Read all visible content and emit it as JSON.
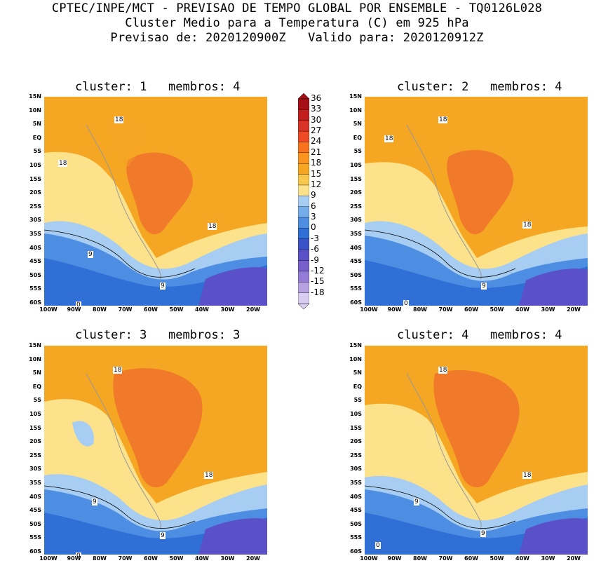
{
  "header": {
    "line1": "CPTEC/INPE/MCT - PREVISAO DE TEMPO GLOBAL POR ENSEMBLE - TQ0126L028",
    "line2": "Cluster Medio para a Temperatura (C) em 925 hPa",
    "line3": "Previsao de: 2020120900Z   Valido para: 2020120912Z"
  },
  "panels": [
    {
      "title": "cluster: 1   membros: 4",
      "labels": [
        "18",
        "18",
        "18",
        "9",
        "9",
        "0"
      ]
    },
    {
      "title": "cluster: 2   membros: 4",
      "labels": [
        "18",
        "18",
        "18",
        "9",
        "0"
      ]
    },
    {
      "title": "cluster: 3   membros: 3",
      "labels": [
        "18",
        "18",
        "9",
        "9",
        "0"
      ]
    },
    {
      "title": "cluster: 4   membros: 4",
      "labels": [
        "18",
        "18",
        "9",
        "9",
        "0"
      ]
    }
  ],
  "axes": {
    "lat_ticks": [
      "15N",
      "10N",
      "5N",
      "EQ",
      "5S",
      "10S",
      "15S",
      "20S",
      "25S",
      "30S",
      "35S",
      "40S",
      "45S",
      "50S",
      "55S",
      "60S"
    ],
    "lon_ticks": [
      "100W",
      "90W",
      "80W",
      "70W",
      "60W",
      "50W",
      "40W",
      "30W",
      "20W"
    ]
  },
  "colorbar": {
    "labels": [
      "36",
      "33",
      "30",
      "27",
      "24",
      "21",
      "18",
      "15",
      "12",
      "9",
      "6",
      "3",
      "0",
      "-3",
      "-6",
      "-9",
      "-12",
      "-15",
      "-18"
    ],
    "colors": [
      "#a50f15",
      "#c21e1e",
      "#d93226",
      "#ee4a25",
      "#f8731c",
      "#fb9520",
      "#f5a623",
      "#f8c84e",
      "#fce28a",
      "#a8cdf2",
      "#73aeea",
      "#4e8ee2",
      "#2f6fd6",
      "#3a52c9",
      "#5a50c8",
      "#7760cc",
      "#947bd6",
      "#b6a2e2",
      "#d8cdf0"
    ]
  },
  "colors": {
    "ocean_warm": "#f5a623",
    "land_hot": "#f07a2a",
    "cool": "#a8cdf2",
    "cold": "#2f6fd6",
    "coldest": "#6a5acb"
  }
}
